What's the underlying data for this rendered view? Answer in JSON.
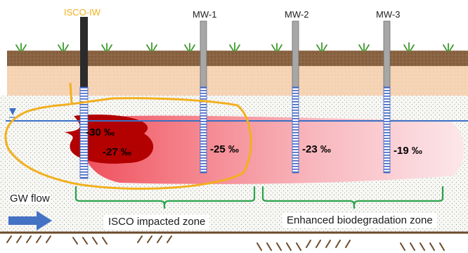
{
  "wells": {
    "injection": "ISCO-IW",
    "mw1": "MW-1",
    "mw2": "MW-2",
    "mw3": "MW-3"
  },
  "isotope_values": {
    "iw_upper": "-30 ‰",
    "iw_lower": "-27 ‰",
    "mw1": "-25 ‰",
    "mw2": "-23 ‰",
    "mw3": "-19 ‰"
  },
  "labels": {
    "gw_flow": "GW flow",
    "isco_zone": "ISCO impacted zone",
    "bio_zone": "Enhanced biodegradation zone"
  },
  "colors": {
    "isco_well_label": "#f2b01e",
    "isco_boundary": "#f2b01e",
    "zone_bracket": "#2aa34a",
    "water_table": "#3a6fc4",
    "flow_arrow": "#4472c4",
    "plume_core": "#b30000",
    "plume_light": "#fbe0e3"
  }
}
